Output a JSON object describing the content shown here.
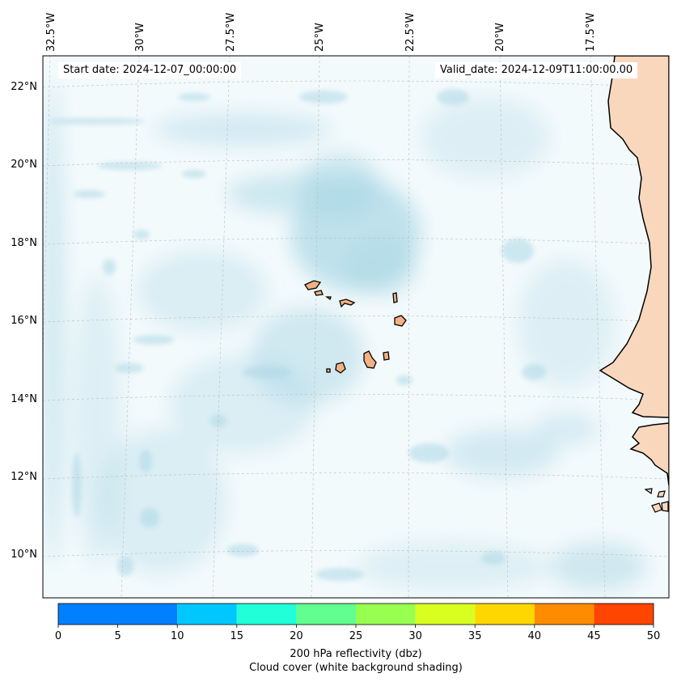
{
  "map": {
    "start_date": "Start date: 2024-12-07_00:00:00",
    "valid_date": "Valid_date: 2024-12-09T11:00:00.00",
    "lon_labels": [
      "32.5°W",
      "30°W",
      "27.5°W",
      "25°W",
      "22.5°W",
      "20°W",
      "17.5°W"
    ],
    "lat_labels": [
      "22°N",
      "20°N",
      "18°N",
      "16°N",
      "14°N",
      "12°N",
      "10°N"
    ],
    "land_color": "#f9d7bd",
    "island_color": "#f2b283",
    "cloud_color": "#add8e6",
    "regions_shown": [
      "Cape Verde islands",
      "West African coast"
    ]
  },
  "colorbar": {
    "ticks": [
      "0",
      "5",
      "10",
      "15",
      "20",
      "25",
      "30",
      "35",
      "40",
      "45",
      "50"
    ],
    "colors": [
      "#0080ff",
      "#00c8ff",
      "#20ffd8",
      "#60ff90",
      "#98ff50",
      "#d8ff20",
      "#ffd700",
      "#ff8c00",
      "#ff4500"
    ],
    "label_line1": "200 hPa reflectivity (dbz)",
    "label_line2": "Cloud cover (white background shading)"
  }
}
